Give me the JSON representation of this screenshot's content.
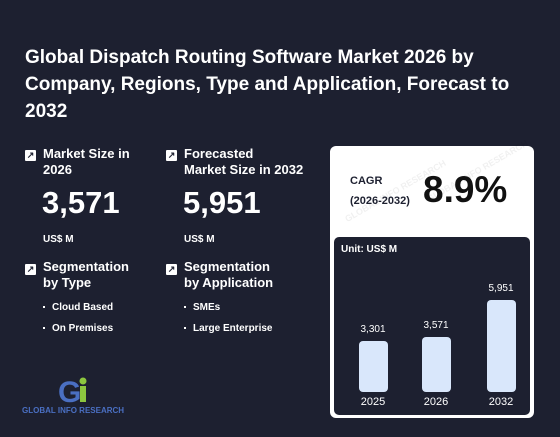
{
  "title": "Global Dispatch Routing Software Market 2026 by Company, Regions, Type and Application, Forecast to 2032",
  "stats": {
    "market_size": {
      "label_line1": "Market Size in",
      "label_line2": "2026",
      "value": "3,571",
      "unit": "US$ M"
    },
    "forecast": {
      "label_line1": "Forecasted",
      "label_line2": "Market Size in 2032",
      "value": "5,951",
      "unit": "US$ M"
    }
  },
  "segmentation": {
    "type": {
      "label_line1": "Segmentation",
      "label_line2": "by Type",
      "items": [
        "Cloud Based",
        "On Premises"
      ]
    },
    "application": {
      "label_line1": "Segmentation",
      "label_line2": "by Application",
      "items": [
        "SMEs",
        "Large Enterprise"
      ]
    }
  },
  "cagr": {
    "label_line1": "CAGR",
    "label_line2": "(2026-2032)",
    "value": "8.9%"
  },
  "icons": {
    "stat_icon": "arrow-up-right-icon"
  },
  "colors": {
    "background": "#1d2030",
    "bar": "#d9e7fb",
    "logo_blue": "#4a6fc2",
    "logo_green": "#8cc63f"
  },
  "logo": {
    "text": "GLOBAL INFO RESEARCH",
    "mark": "Gi"
  },
  "chart_data": {
    "type": "bar",
    "unit_label": "Unit: US$ M",
    "categories": [
      "2025",
      "2026",
      "2032"
    ],
    "values": [
      3301,
      3571,
      5951
    ],
    "value_labels": [
      "3,301",
      "3,571",
      "5,951"
    ],
    "ylim": [
      0,
      5951
    ]
  }
}
